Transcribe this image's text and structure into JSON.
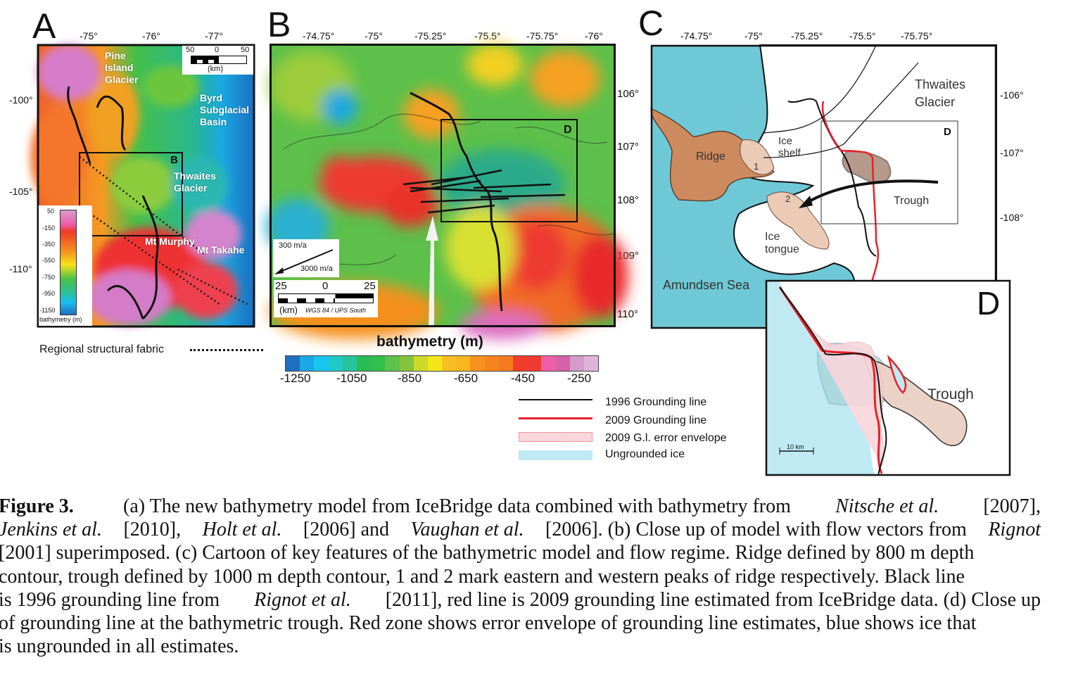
{
  "panel_a": {
    "letter": "A",
    "top_ticks": [
      "-75°",
      "-76°",
      "-77°"
    ],
    "left_ticks": [
      "-100°",
      "-105°",
      "-110°"
    ],
    "labels": {
      "pine_island": "Pine\nIsland\nGlacier",
      "byrd": "Byrd\nSubglacial\nBasin",
      "box_b": "B",
      "thwaites": "Thwaites\nGlacier",
      "mt_murphy": "Mt Murphy",
      "mt_takahe": "Mt Takahe"
    },
    "scale_bar": {
      "left": "50",
      "mid": "0",
      "right": "50",
      "unit": "(km)"
    },
    "legend": {
      "ticks": [
        "50",
        "-150",
        "-350",
        "-550",
        "-750",
        "-950",
        "-1150"
      ],
      "title": "bathymetry (m)"
    },
    "fabric_legend": "Regional structural fabric"
  },
  "panel_b": {
    "letter": "B",
    "top_ticks": [
      "-74.75°",
      "-75°",
      "-75.25°",
      "-75.5°",
      "-75.75°",
      "-76°"
    ],
    "right_ticks": [
      "106°",
      "107°",
      "108°",
      "109°",
      "110°"
    ],
    "box_d": "D",
    "velocity_legend": {
      "small": "300 m/a",
      "large": "3000 m/a"
    },
    "scale_bar": {
      "left": "25",
      "mid": "0",
      "right": "25",
      "unit": "(km)",
      "projection": "WGS 84 / UPS South"
    }
  },
  "colorbar": {
    "title": "bathymetry (m)",
    "ticks": [
      "-1250",
      "-1050",
      "-850",
      "-650",
      "-450",
      "-250"
    ],
    "colors": [
      "#1f6fc0",
      "#1aa8e6",
      "#17c6ee",
      "#20c8c8",
      "#26c49a",
      "#2abb56",
      "#33bf4c",
      "#5cc24a",
      "#86c43e",
      "#cdd92a",
      "#f5e61a",
      "#f8bf22",
      "#f9b61e",
      "#f7921e",
      "#f7841e",
      "#f57a20",
      "#f03c2a",
      "#ee3a30",
      "#ef5fa8",
      "#d463a9",
      "#d69bc8",
      "#e2b3d8"
    ]
  },
  "panel_c": {
    "letter": "C",
    "top_ticks": [
      "-74.75°",
      "-75°",
      "-75.25°",
      "-75.5°",
      "-75.75°"
    ],
    "right_ticks": [
      "-106°",
      "-107°",
      "-108°"
    ],
    "labels": {
      "thwaites": "Thwaites\nGlacier",
      "ridge": "Ridge",
      "ice_shelf": "Ice\nshelf",
      "peak1": "1",
      "peak2": "2",
      "trough": "Trough",
      "ice_tongue": "Ice\ntongue",
      "amundsen": "Amundsen Sea",
      "box_d": "D"
    }
  },
  "panel_d": {
    "letter": "D",
    "trough": "Trough",
    "scale": "10 km"
  },
  "legend": {
    "items": [
      {
        "label": "1996 Grounding line",
        "color": "#111111"
      },
      {
        "label": "2009 Grounding line",
        "color": "#e8202a"
      },
      {
        "label": "2009 G.l. error envelope",
        "color": "#f6c9cf"
      },
      {
        "label": "Ungrounded ice",
        "color": "#bfeaf4"
      }
    ]
  },
  "caption": {
    "l1": [
      "Figure 3.",
      "  (a) The new bathymetry model from IceBridge data combined with bathymetry from ",
      "Nitsche et al.",
      " [2007],"
    ],
    "l2": [
      "Jenkins et al.",
      " [2010], ",
      "Holt et al.",
      " [2006] and ",
      "Vaughan et al.",
      " [2006]. (b) Close up of model with flow vectors from ",
      "Rignot"
    ],
    "l3": "[2001] superimposed. (c) Cartoon of key features of the bathymetric model and flow regime. Ridge defined by 800 m depth",
    "l4": "contour, trough defined by 1000 m depth contour, 1 and 2 mark eastern and western peaks of ridge respectively. Black line",
    "l5": [
      "is 1996 grounding line from ",
      "Rignot et al.",
      " [2011], red line is 2009 grounding line estimated from IceBridge data. (d) Close up"
    ],
    "l6": "of grounding line at the bathymetric trough. Red zone shows error envelope of grounding line estimates, blue shows ice that",
    "l7": "is ungrounded in all estimates."
  }
}
